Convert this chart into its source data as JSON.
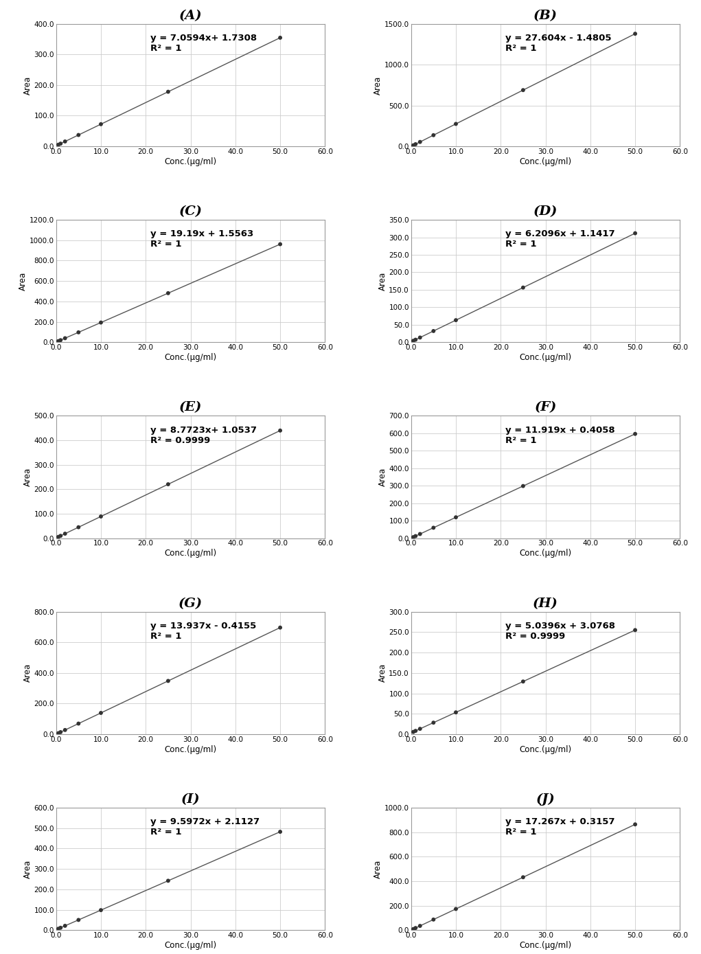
{
  "panels": [
    {
      "label": "(A)",
      "equation": "y = 7.0594x+ 1.7308",
      "r2": "R² = 1",
      "slope": 7.0594,
      "intercept": 1.7308,
      "x_data": [
        0.5,
        1.0,
        2.0,
        5.0,
        10.0,
        25.0,
        50.0
      ],
      "ylim": [
        0,
        400
      ],
      "yticks": [
        0.0,
        100.0,
        200.0,
        300.0,
        400.0
      ],
      "ytick_labels": [
        "0.0",
        "100.0",
        "200.0",
        "300.0",
        "400.0"
      ]
    },
    {
      "label": "(B)",
      "equation": "y = 27.604x - 1.4805",
      "r2": "R² = 1",
      "slope": 27.604,
      "intercept": -1.4805,
      "x_data": [
        0.5,
        1.0,
        2.0,
        5.0,
        10.0,
        25.0,
        50.0
      ],
      "ylim": [
        0,
        1500
      ],
      "yticks": [
        0.0,
        500.0,
        1000.0,
        1500.0
      ],
      "ytick_labels": [
        "0.0",
        "500.0",
        "1000.0",
        "1500.0"
      ]
    },
    {
      "label": "(C)",
      "equation": "y = 19.19x + 1.5563",
      "r2": "R² = 1",
      "slope": 19.19,
      "intercept": 1.5563,
      "x_data": [
        0.5,
        1.0,
        2.0,
        5.0,
        10.0,
        25.0,
        50.0
      ],
      "ylim": [
        0,
        1200
      ],
      "yticks": [
        0.0,
        200.0,
        400.0,
        600.0,
        800.0,
        1000.0,
        1200.0
      ],
      "ytick_labels": [
        "0.0",
        "200.0",
        "400.0",
        "600.0",
        "800.0",
        "1000.0",
        "1200.0"
      ]
    },
    {
      "label": "(D)",
      "equation": "y = 6.2096x + 1.1417",
      "r2": "R² = 1",
      "slope": 6.2096,
      "intercept": 1.1417,
      "x_data": [
        0.5,
        1.0,
        2.0,
        5.0,
        10.0,
        25.0,
        50.0
      ],
      "ylim": [
        0,
        350
      ],
      "yticks": [
        0.0,
        50.0,
        100.0,
        150.0,
        200.0,
        250.0,
        300.0,
        350.0
      ],
      "ytick_labels": [
        "0.0",
        "50.0",
        "100.0",
        "150.0",
        "200.0",
        "250.0",
        "300.0",
        "350.0"
      ]
    },
    {
      "label": "(E)",
      "equation": "y = 8.7723x+ 1.0537",
      "r2": "R² = 0.9999",
      "slope": 8.7723,
      "intercept": 1.0537,
      "x_data": [
        0.5,
        1.0,
        2.0,
        5.0,
        10.0,
        25.0,
        50.0
      ],
      "ylim": [
        0,
        500
      ],
      "yticks": [
        0.0,
        100.0,
        200.0,
        300.0,
        400.0,
        500.0
      ],
      "ytick_labels": [
        "0.0",
        "100.0",
        "200.0",
        "300.0",
        "400.0",
        "500.0"
      ]
    },
    {
      "label": "(F)",
      "equation": "y = 11.919x + 0.4058",
      "r2": "R² = 1",
      "slope": 11.919,
      "intercept": 0.4058,
      "x_data": [
        0.5,
        1.0,
        2.0,
        5.0,
        10.0,
        25.0,
        50.0
      ],
      "ylim": [
        0,
        700
      ],
      "yticks": [
        0.0,
        100.0,
        200.0,
        300.0,
        400.0,
        500.0,
        600.0,
        700.0
      ],
      "ytick_labels": [
        "0.0",
        "100.0",
        "200.0",
        "300.0",
        "400.0",
        "500.0",
        "600.0",
        "700.0"
      ]
    },
    {
      "label": "(G)",
      "equation": "y = 13.937x - 0.4155",
      "r2": "R² = 1",
      "slope": 13.937,
      "intercept": -0.4155,
      "x_data": [
        0.5,
        1.0,
        2.0,
        5.0,
        10.0,
        25.0,
        50.0
      ],
      "ylim": [
        0,
        800
      ],
      "yticks": [
        0.0,
        200.0,
        400.0,
        600.0,
        800.0
      ],
      "ytick_labels": [
        "0.0",
        "200.0",
        "400.0",
        "600.0",
        "800.0"
      ]
    },
    {
      "label": "(H)",
      "equation": "y = 5.0396x + 3.0768",
      "r2": "R² = 0.9999",
      "slope": 5.0396,
      "intercept": 3.0768,
      "x_data": [
        0.5,
        1.0,
        2.0,
        5.0,
        10.0,
        25.0,
        50.0
      ],
      "ylim": [
        0,
        300
      ],
      "yticks": [
        0.0,
        50.0,
        100.0,
        150.0,
        200.0,
        250.0,
        300.0
      ],
      "ytick_labels": [
        "0.0",
        "50.0",
        "100.0",
        "150.0",
        "200.0",
        "250.0",
        "300.0"
      ]
    },
    {
      "label": "(I)",
      "equation": "y = 9.5972x + 2.1127",
      "r2": "R² = 1",
      "slope": 9.5972,
      "intercept": 2.1127,
      "x_data": [
        0.5,
        1.0,
        2.0,
        5.0,
        10.0,
        25.0,
        50.0
      ],
      "ylim": [
        0,
        600
      ],
      "yticks": [
        0.0,
        100.0,
        200.0,
        300.0,
        400.0,
        500.0,
        600.0
      ],
      "ytick_labels": [
        "0.0",
        "100.0",
        "200.0",
        "300.0",
        "400.0",
        "500.0",
        "600.0"
      ]
    },
    {
      "label": "(J)",
      "equation": "y = 17.267x + 0.3157",
      "r2": "R² = 1",
      "slope": 17.267,
      "intercept": 0.3157,
      "x_data": [
        0.5,
        1.0,
        2.0,
        5.0,
        10.0,
        25.0,
        50.0
      ],
      "ylim": [
        0,
        1000
      ],
      "yticks": [
        0.0,
        200.0,
        400.0,
        600.0,
        800.0,
        1000.0
      ],
      "ytick_labels": [
        "0.0",
        "200.0",
        "400.0",
        "600.0",
        "800.0",
        "1000.0"
      ]
    }
  ],
  "xlim": [
    0,
    60
  ],
  "xticks": [
    0.0,
    10.0,
    20.0,
    30.0,
    40.0,
    50.0,
    60.0
  ],
  "xtick_labels": [
    "0.0",
    "10.0",
    "20.0",
    "30.0",
    "40.0",
    "50.0",
    "60.0"
  ],
  "xlabel": "Conc.(μg/ml)",
  "ylabel": "Area",
  "line_color": "#555555",
  "marker_color": "#333333",
  "bg_color": "#ffffff",
  "plot_bg_color": "#ffffff",
  "grid_color": "#cccccc",
  "title_fontsize": 14,
  "label_fontsize": 8.5,
  "tick_fontsize": 7.5,
  "annotation_fontsize": 9.5
}
